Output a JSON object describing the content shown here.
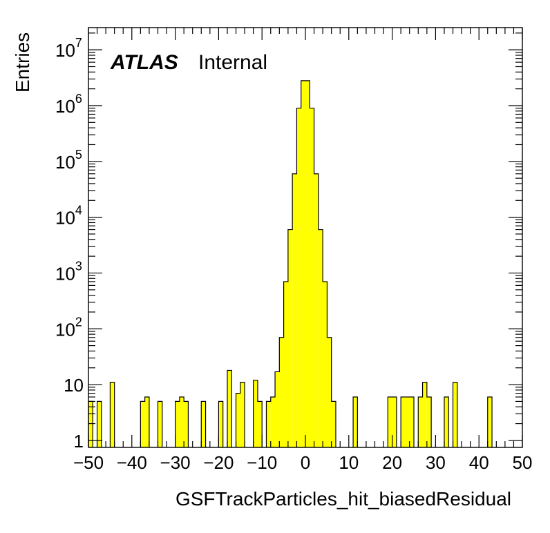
{
  "chart_data": {
    "type": "bar",
    "subtype": "histogram",
    "xlabel": "GSFTrackParticles_hit_biasedResidual",
    "ylabel": "Entries",
    "label_bold": "ATLAS",
    "label_normal": "Internal",
    "xlim": [
      -50,
      50
    ],
    "ylim": [
      0.75,
      25000000
    ],
    "yscale": "log",
    "grid": false,
    "bin_width": 1,
    "fill_color": "#ffff00",
    "line_color": "#000000",
    "x_tick_labels": [
      "−50",
      "−40",
      "−30",
      "−20",
      "−10",
      "0",
      "10",
      "20",
      "30",
      "40",
      "50"
    ],
    "y_tick_labels": [
      {
        "value": 1,
        "base": "1",
        "exp": ""
      },
      {
        "value": 10,
        "base": "10",
        "exp": ""
      },
      {
        "value": 100,
        "base": "10",
        "exp": "2"
      },
      {
        "value": 1000,
        "base": "10",
        "exp": "3"
      },
      {
        "value": 10000,
        "base": "10",
        "exp": "4"
      },
      {
        "value": 100000,
        "base": "10",
        "exp": "5"
      },
      {
        "value": 1000000,
        "base": "10",
        "exp": "6"
      },
      {
        "value": 10000000,
        "base": "10",
        "exp": "7"
      }
    ],
    "bins": [
      {
        "x": -50,
        "y": 5
      },
      {
        "x": -48,
        "y": 5
      },
      {
        "x": -45,
        "y": 11
      },
      {
        "x": -38,
        "y": 5
      },
      {
        "x": -37,
        "y": 6
      },
      {
        "x": -34,
        "y": 5
      },
      {
        "x": -30,
        "y": 5
      },
      {
        "x": -29,
        "y": 6
      },
      {
        "x": -28,
        "y": 5
      },
      {
        "x": -24,
        "y": 5
      },
      {
        "x": -20,
        "y": 5
      },
      {
        "x": -18,
        "y": 18
      },
      {
        "x": -16,
        "y": 7
      },
      {
        "x": -15,
        "y": 11
      },
      {
        "x": -12,
        "y": 12
      },
      {
        "x": -11,
        "y": 5
      },
      {
        "x": -9,
        "y": 5
      },
      {
        "x": -8,
        "y": 6
      },
      {
        "x": -7,
        "y": 17
      },
      {
        "x": -6,
        "y": 70
      },
      {
        "x": -5,
        "y": 700
      },
      {
        "x": -4,
        "y": 6000
      },
      {
        "x": -3,
        "y": 60000
      },
      {
        "x": -2,
        "y": 900000
      },
      {
        "x": -1,
        "y": 2800000
      },
      {
        "x": 0,
        "y": 2800000
      },
      {
        "x": 1,
        "y": 900000
      },
      {
        "x": 2,
        "y": 60000
      },
      {
        "x": 3,
        "y": 6000
      },
      {
        "x": 4,
        "y": 700
      },
      {
        "x": 5,
        "y": 70
      },
      {
        "x": 6,
        "y": 5
      },
      {
        "x": 11,
        "y": 6
      },
      {
        "x": 19,
        "y": 6
      },
      {
        "x": 20,
        "y": 6
      },
      {
        "x": 22,
        "y": 6
      },
      {
        "x": 23,
        "y": 6
      },
      {
        "x": 24,
        "y": 6
      },
      {
        "x": 26,
        "y": 6
      },
      {
        "x": 27,
        "y": 11
      },
      {
        "x": 28,
        "y": 6
      },
      {
        "x": 32,
        "y": 6
      },
      {
        "x": 34,
        "y": 11
      },
      {
        "x": 42,
        "y": 6
      }
    ]
  }
}
